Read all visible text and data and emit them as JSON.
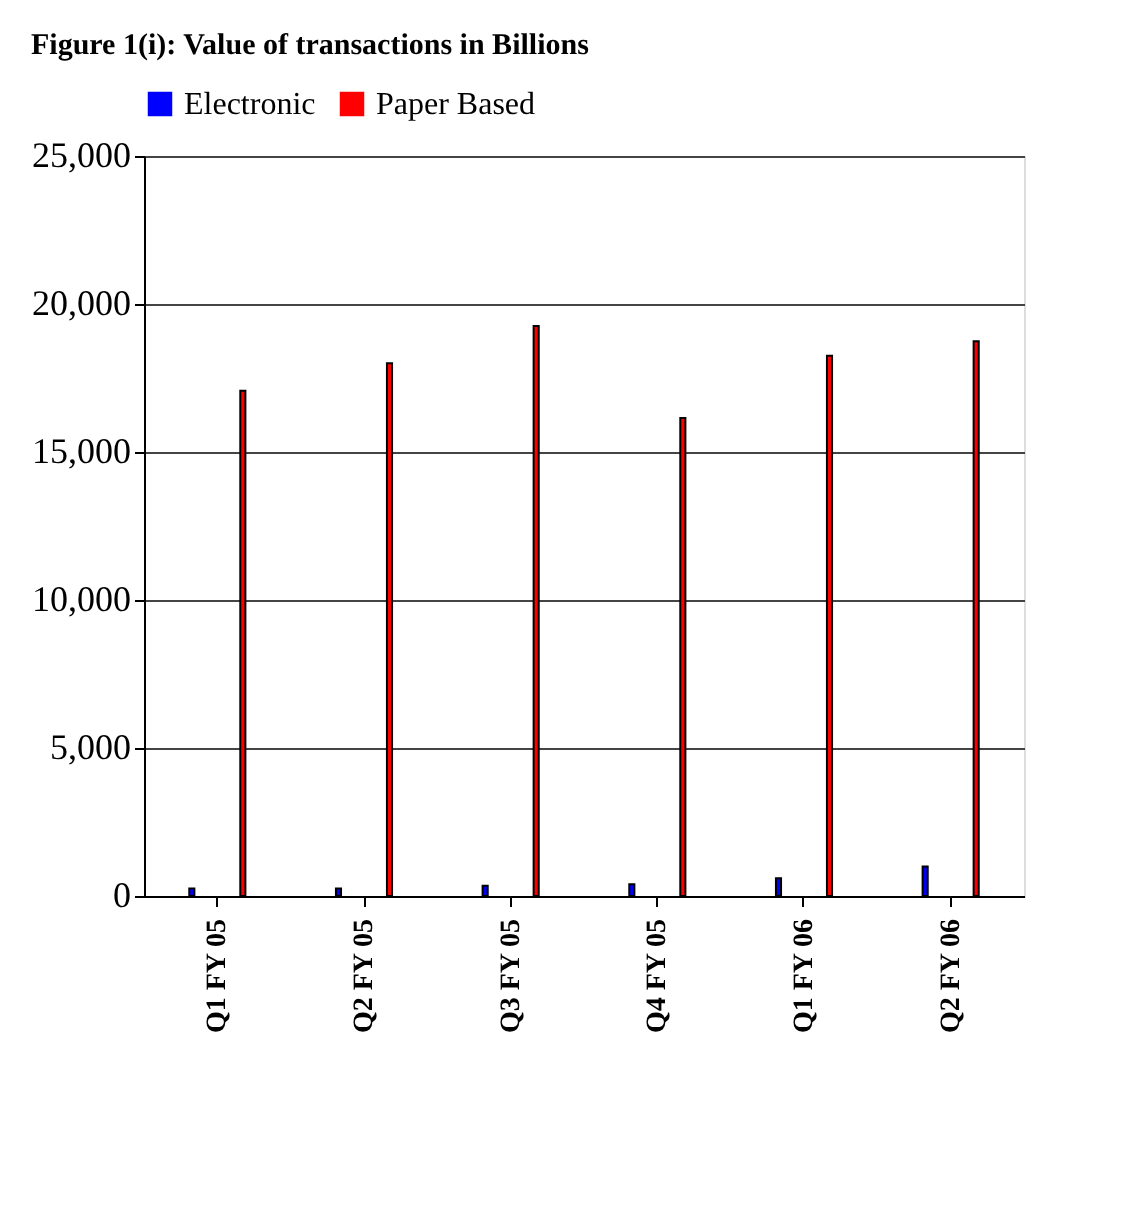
{
  "chart_data": {
    "type": "bar",
    "title": "Figure 1(i): Value of transactions in Billions",
    "categories": [
      "Q1 FY 05",
      "Q2 FY 05",
      "Q3 FY 05",
      "Q4 FY 05",
      "Q1 FY 06",
      "Q2 FY 06"
    ],
    "series": [
      {
        "name": "Electronic",
        "color": "#0000ff",
        "values": [
          250,
          250,
          350,
          400,
          600,
          1000
        ]
      },
      {
        "name": "Paper Based",
        "color": "#ff0000",
        "values": [
          17070,
          18000,
          19260,
          16150,
          18250,
          18740
        ]
      }
    ],
    "ylim": [
      0,
      25000
    ],
    "yticks": [
      {
        "value": 0,
        "label": "0"
      },
      {
        "value": 5000,
        "label": "5,000"
      },
      {
        "value": 10000,
        "label": "10,000"
      },
      {
        "value": 15000,
        "label": "15,000"
      },
      {
        "value": 20000,
        "label": "20,000"
      },
      {
        "value": 25000,
        "label": "25,000"
      }
    ],
    "grid": "y",
    "legend": "top"
  }
}
